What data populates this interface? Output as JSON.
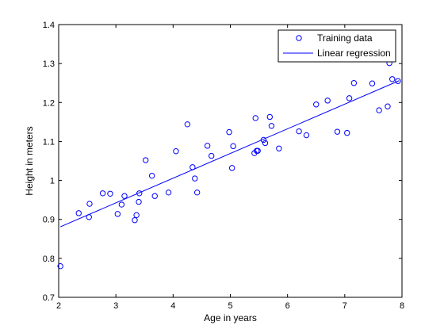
{
  "chart_data": {
    "type": "scatter",
    "xlabel": "Age in years",
    "ylabel": "Height in meters",
    "xlim": [
      2,
      8
    ],
    "ylim": [
      0.7,
      1.4
    ],
    "xticks": [
      "2",
      "3",
      "4",
      "5",
      "6",
      "7",
      "8"
    ],
    "yticks": [
      "0.7",
      "0.8",
      "0.9",
      "1",
      "1.1",
      "1.2",
      "1.3",
      "1.4"
    ],
    "legend_position": "top-right",
    "grid": false,
    "series": [
      {
        "name": "Training data",
        "kind": "markers",
        "marker": "circle",
        "color": "#0000ff",
        "x": [
          2.03,
          2.35,
          2.53,
          2.54,
          2.77,
          2.9,
          3.03,
          3.1,
          3.15,
          3.33,
          3.36,
          3.4,
          3.41,
          3.52,
          3.63,
          3.68,
          3.92,
          4.05,
          4.25,
          4.34,
          4.38,
          4.42,
          4.6,
          4.67,
          4.98,
          5.03,
          5.05,
          5.42,
          5.44,
          5.46,
          5.48,
          5.58,
          5.61,
          5.69,
          5.72,
          5.85,
          6.2,
          6.33,
          6.5,
          6.7,
          6.87,
          7.04,
          7.08,
          7.16,
          7.48,
          7.6,
          7.75,
          7.78,
          7.83,
          7.93
        ],
        "y": [
          0.78,
          0.916,
          0.906,
          0.94,
          0.967,
          0.966,
          0.914,
          0.938,
          0.96,
          0.898,
          0.911,
          0.945,
          0.967,
          1.052,
          1.012,
          0.96,
          0.969,
          1.075,
          1.144,
          1.034,
          1.005,
          0.969,
          1.089,
          1.063,
          1.124,
          1.032,
          1.088,
          1.07,
          1.16,
          1.076,
          1.076,
          1.104,
          1.096,
          1.163,
          1.14,
          1.082,
          1.126,
          1.116,
          1.195,
          1.205,
          1.125,
          1.122,
          1.211,
          1.25,
          1.249,
          1.18,
          1.19,
          1.301,
          1.26,
          1.255
        ]
      },
      {
        "name": "Linear regression",
        "kind": "line",
        "color": "#0000ff",
        "x": [
          2.03,
          7.95
        ],
        "y": [
          0.881,
          1.256
        ]
      }
    ]
  }
}
